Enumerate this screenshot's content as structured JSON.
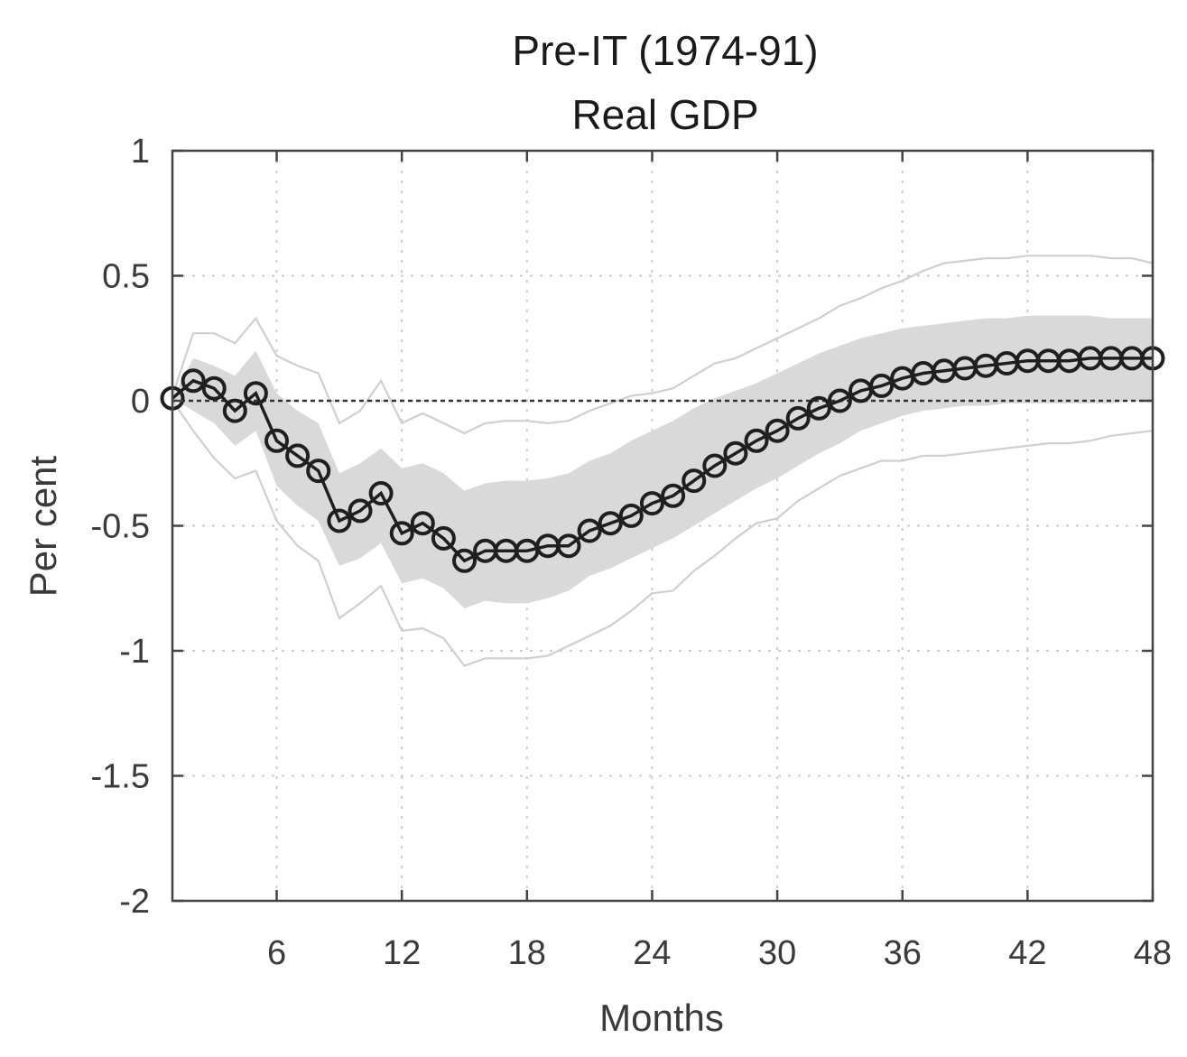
{
  "chart_data": {
    "type": "line",
    "title": "Pre-IT (1974-91)",
    "subtitle": "Real GDP",
    "xlabel": "Months",
    "ylabel": "Per cent",
    "xlim": [
      1,
      48
    ],
    "ylim": [
      -2,
      1
    ],
    "x_ticks": [
      6,
      12,
      18,
      24,
      30,
      36,
      42,
      48
    ],
    "x_tick_labels": [
      "6",
      "12",
      "18",
      "24",
      "30",
      "36",
      "42",
      "48"
    ],
    "y_ticks": [
      1,
      0.5,
      0,
      -0.5,
      -1,
      -1.5,
      -2
    ],
    "y_tick_labels": [
      "1",
      "0.5",
      "0",
      "-0.5",
      "-1",
      "-1.5",
      "-2"
    ],
    "grid": true,
    "x": [
      1,
      2,
      3,
      4,
      5,
      6,
      7,
      8,
      9,
      10,
      11,
      12,
      13,
      14,
      15,
      16,
      17,
      18,
      19,
      20,
      21,
      22,
      23,
      24,
      25,
      26,
      27,
      28,
      29,
      30,
      31,
      32,
      33,
      34,
      35,
      36,
      37,
      38,
      39,
      40,
      41,
      42,
      43,
      44,
      45,
      46,
      47,
      48
    ],
    "series": [
      {
        "role": "point_estimate",
        "values": [
          0.01,
          0.08,
          0.05,
          -0.04,
          0.03,
          -0.16,
          -0.22,
          -0.28,
          -0.48,
          -0.44,
          -0.37,
          -0.53,
          -0.49,
          -0.55,
          -0.64,
          -0.6,
          -0.6,
          -0.6,
          -0.58,
          -0.58,
          -0.52,
          -0.49,
          -0.46,
          -0.41,
          -0.38,
          -0.32,
          -0.26,
          -0.21,
          -0.16,
          -0.12,
          -0.07,
          -0.03,
          0.0,
          0.04,
          0.06,
          0.09,
          0.11,
          0.12,
          0.13,
          0.14,
          0.15,
          0.16,
          0.16,
          0.16,
          0.17,
          0.17,
          0.17,
          0.17
        ],
        "color": "#1f1f1f"
      },
      {
        "role": "inner_band_upper",
        "values": [
          0.01,
          0.17,
          0.14,
          0.1,
          0.2,
          0.03,
          -0.04,
          -0.09,
          -0.29,
          -0.25,
          -0.19,
          -0.27,
          -0.25,
          -0.29,
          -0.36,
          -0.33,
          -0.32,
          -0.32,
          -0.31,
          -0.29,
          -0.24,
          -0.21,
          -0.16,
          -0.12,
          -0.08,
          -0.03,
          0.01,
          0.04,
          0.07,
          0.11,
          0.15,
          0.19,
          0.22,
          0.25,
          0.27,
          0.29,
          0.3,
          0.31,
          0.32,
          0.33,
          0.33,
          0.34,
          0.34,
          0.34,
          0.34,
          0.33,
          0.33,
          0.33
        ]
      },
      {
        "role": "inner_band_lower",
        "values": [
          0.01,
          -0.04,
          -0.09,
          -0.18,
          -0.12,
          -0.34,
          -0.42,
          -0.48,
          -0.66,
          -0.63,
          -0.57,
          -0.73,
          -0.71,
          -0.75,
          -0.83,
          -0.8,
          -0.81,
          -0.81,
          -0.79,
          -0.76,
          -0.7,
          -0.67,
          -0.63,
          -0.59,
          -0.55,
          -0.5,
          -0.45,
          -0.4,
          -0.35,
          -0.31,
          -0.26,
          -0.21,
          -0.17,
          -0.12,
          -0.09,
          -0.06,
          -0.04,
          -0.03,
          -0.02,
          -0.02,
          -0.01,
          -0.01,
          -0.01,
          -0.01,
          -0.01,
          -0.01,
          0.0,
          0.0
        ]
      },
      {
        "role": "outer_band_upper",
        "values": [
          0.02,
          0.27,
          0.27,
          0.23,
          0.33,
          0.18,
          0.14,
          0.11,
          -0.09,
          -0.04,
          0.08,
          -0.09,
          -0.05,
          -0.09,
          -0.13,
          -0.09,
          -0.08,
          -0.08,
          -0.09,
          -0.08,
          -0.04,
          -0.01,
          0.02,
          0.03,
          0.05,
          0.1,
          0.15,
          0.17,
          0.21,
          0.25,
          0.29,
          0.33,
          0.38,
          0.41,
          0.45,
          0.48,
          0.52,
          0.55,
          0.56,
          0.57,
          0.57,
          0.58,
          0.58,
          0.58,
          0.58,
          0.57,
          0.57,
          0.55
        ]
      },
      {
        "role": "outer_band_lower",
        "values": [
          0.0,
          -0.12,
          -0.23,
          -0.31,
          -0.28,
          -0.48,
          -0.58,
          -0.64,
          -0.87,
          -0.81,
          -0.74,
          -0.92,
          -0.91,
          -0.95,
          -1.06,
          -1.03,
          -1.03,
          -1.03,
          -1.02,
          -0.98,
          -0.94,
          -0.9,
          -0.84,
          -0.77,
          -0.76,
          -0.68,
          -0.62,
          -0.55,
          -0.49,
          -0.47,
          -0.4,
          -0.35,
          -0.3,
          -0.27,
          -0.24,
          -0.24,
          -0.22,
          -0.22,
          -0.21,
          -0.2,
          -0.19,
          -0.18,
          -0.17,
          -0.17,
          -0.16,
          -0.14,
          -0.13,
          -0.12
        ]
      }
    ],
    "colors": {
      "band_fill": "#d9d9d9",
      "outer_band_line": "#cfcfcf",
      "axes": "#444444",
      "grid": "#cccccc",
      "zero_line": "#333333"
    }
  }
}
